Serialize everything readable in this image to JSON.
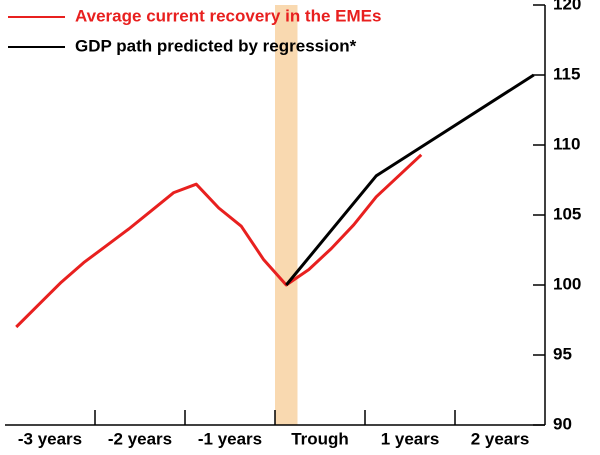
{
  "chart_data": {
    "type": "line",
    "categories": [
      "-3 years",
      "-2 years",
      "-1 years",
      "Trough",
      "1 years",
      "2 years"
    ],
    "series": [
      {
        "name": "Average current recovery in the EMEs",
        "color": "#e8201f",
        "x": [
          -12,
          -11,
          -10,
          -9,
          -8,
          -7,
          -6,
          -5,
          -4,
          -3,
          -2,
          -1,
          0,
          1,
          2,
          3,
          4,
          5,
          6
        ],
        "values": [
          97,
          98.6,
          100.2,
          101.6,
          102.8,
          104,
          105.3,
          106.6,
          107.2,
          105.5,
          104.2,
          101.8,
          100,
          101.1,
          102.6,
          104.3,
          106.3,
          107.8,
          109.3
        ]
      },
      {
        "name": "GDP path predicted by regression*",
        "color": "#000000",
        "x": [
          0,
          4,
          11
        ],
        "values": [
          100,
          107.8,
          115
        ]
      }
    ],
    "xlim": [
      -12.5,
      11.5
    ],
    "ylim": [
      90,
      120
    ],
    "yticks": [
      90,
      95,
      100,
      105,
      110,
      115,
      120
    ]
  }
}
